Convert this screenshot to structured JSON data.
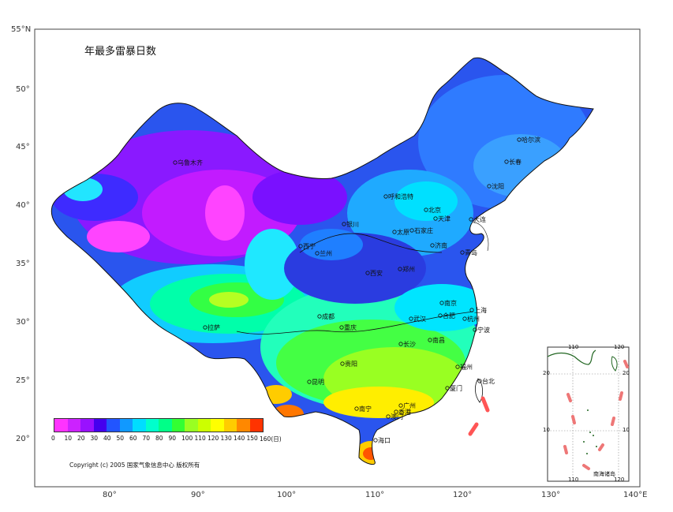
{
  "title": "年最多雷暴日数",
  "copyright": "Copyright (c) 2005 国家气象信息中心 版权所有",
  "lat_labels": [
    "55°N",
    "50°",
    "45°",
    "40°",
    "35°",
    "30°",
    "25°",
    "20°"
  ],
  "lon_labels": [
    "80°",
    "90°",
    "100°",
    "110°",
    "120°",
    "130°",
    "140°E"
  ],
  "legend": {
    "ticks": [
      "0",
      "10",
      "20",
      "30",
      "40",
      "50",
      "60",
      "70",
      "80",
      "90",
      "100",
      "110",
      "120",
      "130",
      "140",
      "150",
      "160(日)"
    ],
    "colors": [
      "#ff33ff",
      "#cc22ff",
      "#9911ff",
      "#4400ee",
      "#2255ff",
      "#1199ff",
      "#00ddff",
      "#00ffcc",
      "#00ff88",
      "#33ff33",
      "#99ff22",
      "#ccff00",
      "#ffff00",
      "#ffcc00",
      "#ff8800",
      "#ff3300"
    ]
  },
  "cities": [
    "乌鲁木齐",
    "哈尔滨",
    "长春",
    "沈阳",
    "呼和浩特",
    "北京",
    "天津",
    "大连",
    "太原",
    "石家庄",
    "济南",
    "青岛",
    "西宁",
    "兰州",
    "银川",
    "西安",
    "郑州",
    "南京",
    "上海",
    "合肥",
    "杭州",
    "宁波",
    "拉萨",
    "成都",
    "武汉",
    "重庆",
    "长沙",
    "南昌",
    "福州",
    "贵阳",
    "昆明",
    "台北",
    "厦门",
    "广州",
    "南宁",
    "澳门",
    "香港",
    "海口"
  ],
  "inset": {
    "title": "南海诸岛",
    "top_labels": [
      "110",
      "120"
    ],
    "bottom_labels": [
      "110",
      "120"
    ],
    "left_labels": [
      "20",
      "10"
    ],
    "right_labels": [
      "20",
      "10"
    ]
  }
}
